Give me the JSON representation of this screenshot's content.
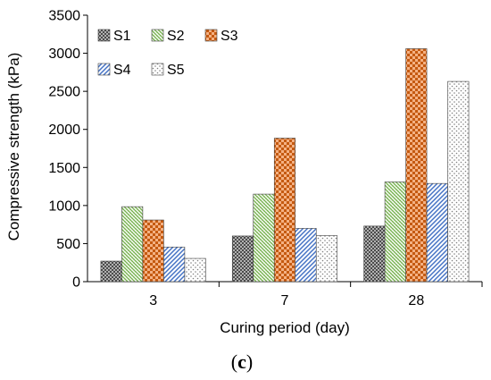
{
  "chart_data": {
    "type": "bar",
    "title": "",
    "xlabel": "Curing period (day)",
    "ylabel": "Compressive strength (kPa)",
    "categories": [
      "3",
      "7",
      "28"
    ],
    "ylim": [
      0,
      3500
    ],
    "yticks": [
      "0",
      "500",
      "1000",
      "1500",
      "2000",
      "2500",
      "3000",
      "3500"
    ],
    "grid": false,
    "legend_position": "top-left",
    "series": [
      {
        "name": "S1",
        "values": [
          270,
          600,
          730
        ],
        "color": "#595959",
        "pattern": "crosshatch-gray"
      },
      {
        "name": "S2",
        "values": [
          985,
          1150,
          1310
        ],
        "color": "#70AD47",
        "pattern": "diagonal-green"
      },
      {
        "name": "S3",
        "values": [
          810,
          1885,
          3060
        ],
        "color": "#C55A11",
        "pattern": "checker-orange"
      },
      {
        "name": "S4",
        "values": [
          455,
          700,
          1290
        ],
        "color": "#4472C4",
        "pattern": "diagonal-blue"
      },
      {
        "name": "S5",
        "values": [
          305,
          605,
          2630
        ],
        "color": "#7F7F7F",
        "pattern": "dots-gray"
      }
    ]
  },
  "caption": {
    "open": "(",
    "letter": "c",
    "close": ")"
  }
}
